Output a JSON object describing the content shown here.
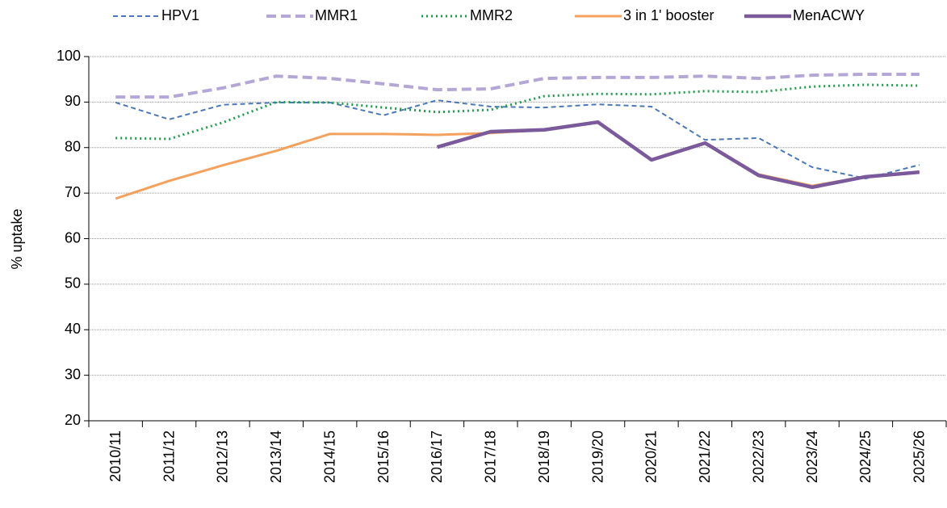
{
  "chart_data": {
    "type": "line",
    "ylabel": "% uptake",
    "categories": [
      "2010/11",
      "2011/12",
      "2012/13",
      "2013/14",
      "2014/15",
      "2015/16",
      "2016/17",
      "2017/18",
      "2018/19",
      "2019/20",
      "2020/21",
      "2021/22",
      "2022/23",
      "2023/24",
      "2024/25",
      "2025/26"
    ],
    "series": [
      {
        "name": "HPV1",
        "color": "#4a78b8",
        "style": "dashed",
        "values": [
          89.9,
          86.2,
          89.4,
          89.9,
          89.9,
          87.1,
          90.4,
          89.0,
          88.8,
          89.5,
          89.0,
          81.7,
          82.1,
          75.7,
          73.2,
          76.2
        ]
      },
      {
        "name": "MMR1",
        "color": "#b4a7d6",
        "style": "long-dashed",
        "values": [
          91.1,
          91.1,
          93.1,
          95.7,
          95.2,
          94.0,
          92.7,
          92.9,
          95.2,
          95.4,
          95.4,
          95.7,
          95.2,
          95.9,
          96.1,
          96.1
        ]
      },
      {
        "name": "MMR2",
        "color": "#1a9e4a",
        "style": "dotted",
        "values": [
          82.1,
          81.9,
          85.5,
          90.0,
          89.9,
          88.8,
          87.8,
          88.3,
          91.3,
          91.8,
          91.7,
          92.4,
          92.2,
          93.4,
          93.8,
          93.6
        ]
      },
      {
        "name": "3 in 1' booster",
        "color": "#f4a15d",
        "style": "solid",
        "values": [
          68.8,
          72.7,
          76.1,
          79.3,
          83.0,
          83.0,
          82.8,
          83.2,
          83.9,
          85.5,
          77.3,
          81.0,
          74.1,
          71.6,
          73.6,
          74.6
        ]
      },
      {
        "name": "MenACWY",
        "color": "#7a5a9a",
        "style": "thick",
        "values": [
          null,
          null,
          null,
          null,
          null,
          null,
          80.1,
          83.5,
          83.9,
          85.6,
          77.3,
          81.0,
          73.9,
          71.3,
          73.6,
          74.6
        ]
      }
    ],
    "ylim": [
      20,
      100
    ],
    "yticks": [
      20,
      30,
      40,
      50,
      60,
      70,
      80,
      90,
      100
    ],
    "grid": true,
    "legend": "top"
  }
}
